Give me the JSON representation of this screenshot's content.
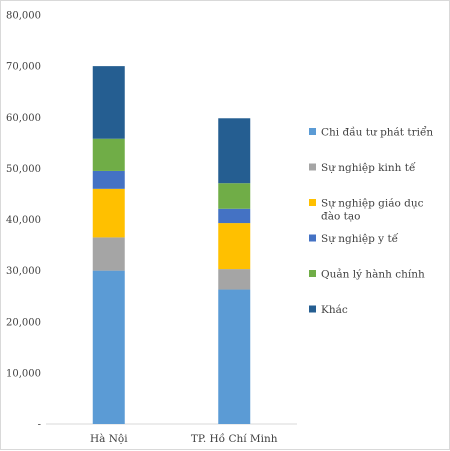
{
  "chart_data": {
    "type": "bar",
    "stacked": true,
    "categories": [
      "Hà Nội",
      "TP. Hồ Chí Minh"
    ],
    "series": [
      {
        "name": "Chi đầu tư phát triển",
        "color": "#5b9bd5",
        "values": [
          30000,
          26300
        ]
      },
      {
        "name": "Sự nghiệp kinh tế",
        "color": "#a5a5a5",
        "values": [
          6500,
          4000
        ]
      },
      {
        "name": "Sự nghiệp giáo dục đào tạo",
        "color": "#ffc000",
        "values": [
          9500,
          9000
        ]
      },
      {
        "name": "Sự nghiệp y tế",
        "color": "#4472c4",
        "values": [
          3500,
          2800
        ]
      },
      {
        "name": "Quản lý hành chính",
        "color": "#70ad47",
        "values": [
          6300,
          5000
        ]
      },
      {
        "name": "Khác",
        "color": "#255e91",
        "values": [
          14200,
          12700
        ]
      }
    ],
    "yticks": [
      "-",
      "10,000",
      "20,000",
      "30,000",
      "40,000",
      "50,000",
      "60,000",
      "70,000",
      "80,000"
    ],
    "ylim": [
      0,
      80000
    ],
    "legend_position": "right",
    "title": "",
    "xlabel": "",
    "ylabel": ""
  }
}
